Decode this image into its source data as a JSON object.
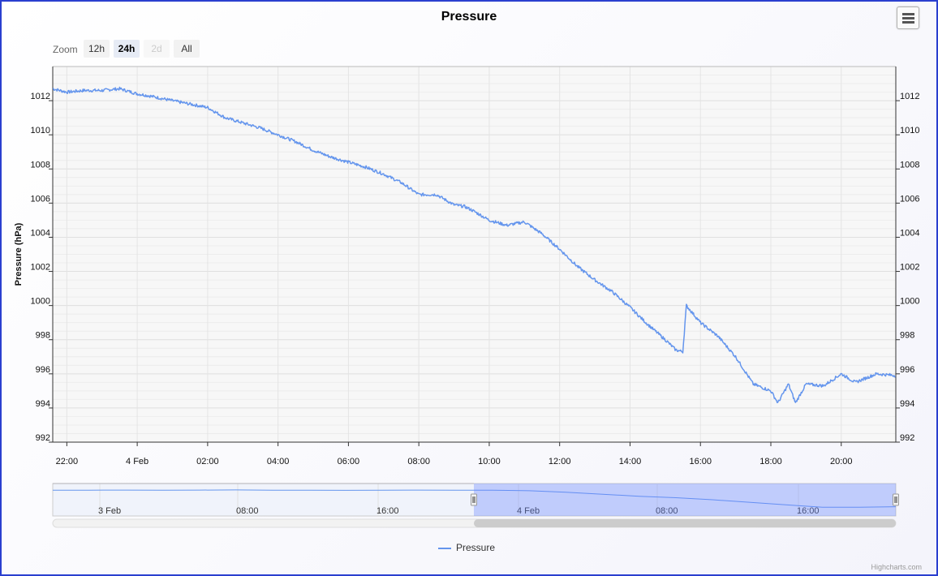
{
  "chart_data": {
    "type": "line",
    "title": "Pressure",
    "ylabel": "Pressure (hPa)",
    "ylim": [
      992,
      1014
    ],
    "yticks": [
      "992",
      "994",
      "996",
      "998",
      "1000",
      "1002",
      "1004",
      "1006",
      "1008",
      "1010",
      "1012"
    ],
    "xlim_hours": [
      -2.4,
      21.55
    ],
    "xticks": [
      "22:00",
      "4 Feb",
      "02:00",
      "04:00",
      "06:00",
      "08:00",
      "10:00",
      "12:00",
      "14:00",
      "16:00",
      "18:00",
      "20:00"
    ],
    "series": [
      {
        "name": "Pressure",
        "color": "#6495ed",
        "x_hours": [
          -2.4,
          -2.0,
          -1.5,
          -1.0,
          -0.5,
          0.0,
          0.3,
          1.0,
          1.5,
          2.0,
          2.5,
          3.0,
          3.5,
          4.0,
          4.5,
          5.0,
          5.5,
          6.0,
          6.5,
          7.0,
          7.5,
          8.0,
          8.5,
          9.0,
          9.3,
          9.5,
          10.0,
          10.5,
          11.0,
          11.5,
          12.0,
          12.5,
          13.0,
          13.5,
          14.0,
          14.5,
          15.0,
          15.3,
          15.5,
          15.6,
          16.0,
          16.5,
          17.0,
          17.5,
          18.0,
          18.2,
          18.5,
          18.7,
          19.0,
          19.5,
          20.0,
          20.4,
          21.0,
          21.55
        ],
        "values": [
          1012.7,
          1012.5,
          1012.6,
          1012.6,
          1012.7,
          1012.4,
          1012.3,
          1012.0,
          1011.8,
          1011.6,
          1011.0,
          1010.7,
          1010.4,
          1010.0,
          1009.6,
          1009.1,
          1008.7,
          1008.4,
          1008.1,
          1007.7,
          1007.2,
          1006.5,
          1006.5,
          1005.9,
          1005.8,
          1005.6,
          1005.0,
          1004.7,
          1004.9,
          1004.2,
          1003.3,
          1002.3,
          1001.5,
          1000.8,
          999.9,
          998.9,
          998.0,
          997.4,
          997.3,
          1000.0,
          999.0,
          998.2,
          997.0,
          995.4,
          995.0,
          994.3,
          995.4,
          994.3,
          995.4,
          995.3,
          996.0,
          995.5,
          996.0,
          995.9
        ]
      }
    ],
    "navigator": {
      "xticks": [
        "3 Feb",
        "08:00",
        "16:00",
        "4 Feb",
        "08:00",
        "16:00"
      ]
    }
  },
  "zoom": {
    "label": "Zoom",
    "buttons": [
      "12h",
      "24h",
      "2d",
      "All"
    ],
    "selected": "24h",
    "disabled": "2d"
  },
  "credits": "Highcharts.com"
}
